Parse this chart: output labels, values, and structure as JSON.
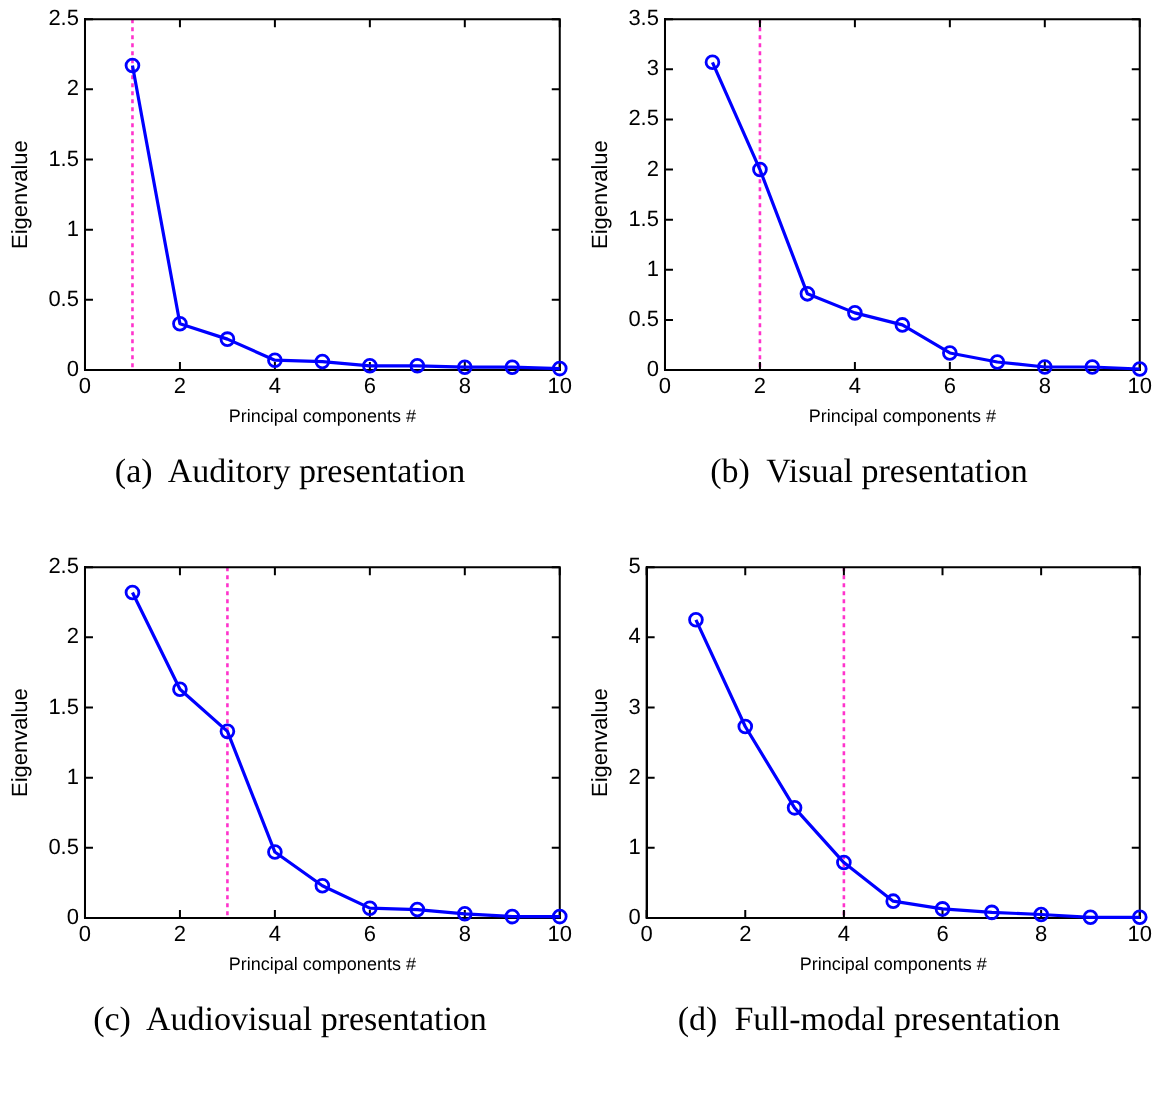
{
  "chart_data": [
    {
      "type": "line",
      "title": "(a)  Auditory presentation",
      "xlabel": "Principal components #",
      "ylabel": "Eigenvalue",
      "x": [
        1,
        2,
        3,
        4,
        5,
        6,
        7,
        8,
        9,
        10
      ],
      "xlim": [
        0,
        10
      ],
      "xticks": [
        0,
        2,
        4,
        6,
        8,
        10
      ],
      "ylim": [
        0,
        2.5
      ],
      "yticks": [
        0,
        0.5,
        1,
        1.5,
        2,
        2.5
      ],
      "marker": "circle",
      "line_style": "solid",
      "grid": false,
      "legend": false,
      "series": [
        {
          "color": "#0000ff",
          "values": [
            2.17,
            0.33,
            0.22,
            0.07,
            0.06,
            0.03,
            0.03,
            0.02,
            0.02,
            0.01
          ]
        }
      ],
      "ref_lines": [
        {
          "axis": "x",
          "value": 1,
          "color": "#ff33cc",
          "line_style": "dotted"
        }
      ]
    },
    {
      "type": "line",
      "title": "(b)  Visual presentation",
      "xlabel": "Principal components #",
      "ylabel": "Eigenvalue",
      "x": [
        1,
        2,
        3,
        4,
        5,
        6,
        7,
        8,
        9,
        10
      ],
      "xlim": [
        0,
        10
      ],
      "xticks": [
        0,
        2,
        4,
        6,
        8,
        10
      ],
      "ylim": [
        0,
        3.5
      ],
      "yticks": [
        0,
        0.5,
        1,
        1.5,
        2,
        2.5,
        3,
        3.5
      ],
      "marker": "circle",
      "line_style": "solid",
      "grid": false,
      "legend": false,
      "series": [
        {
          "color": "#0000ff",
          "values": [
            3.07,
            2.0,
            0.76,
            0.57,
            0.45,
            0.17,
            0.08,
            0.03,
            0.03,
            0.01
          ]
        }
      ],
      "ref_lines": [
        {
          "axis": "x",
          "value": 2,
          "color": "#ff33cc",
          "line_style": "dotted"
        }
      ]
    },
    {
      "type": "line",
      "title": "(c)  Audiovisual presentation",
      "xlabel": "Principal components #",
      "ylabel": "Eigenvalue",
      "x": [
        1,
        2,
        3,
        4,
        5,
        6,
        7,
        8,
        9,
        10
      ],
      "xlim": [
        0,
        10
      ],
      "xticks": [
        0,
        2,
        4,
        6,
        8,
        10
      ],
      "ylim": [
        0,
        2.5
      ],
      "yticks": [
        0,
        0.5,
        1,
        1.5,
        2,
        2.5
      ],
      "marker": "circle",
      "line_style": "solid",
      "grid": false,
      "legend": false,
      "series": [
        {
          "color": "#0000ff",
          "values": [
            2.32,
            1.63,
            1.33,
            0.47,
            0.23,
            0.07,
            0.06,
            0.03,
            0.01,
            0.01
          ]
        }
      ],
      "ref_lines": [
        {
          "axis": "x",
          "value": 3,
          "color": "#ff33cc",
          "line_style": "dotted"
        }
      ]
    },
    {
      "type": "line",
      "title": "(d)  Full-modal presentation",
      "xlabel": "Principal components #",
      "ylabel": "Eigenvalue",
      "x": [
        1,
        2,
        3,
        4,
        5,
        6,
        7,
        8,
        9,
        10
      ],
      "xlim": [
        0,
        10
      ],
      "xticks": [
        0,
        2,
        4,
        6,
        8,
        10
      ],
      "ylim": [
        0,
        5
      ],
      "yticks": [
        0,
        1,
        2,
        3,
        4,
        5
      ],
      "marker": "circle",
      "line_style": "solid",
      "grid": false,
      "legend": false,
      "series": [
        {
          "color": "#0000ff",
          "values": [
            4.25,
            2.73,
            1.57,
            0.79,
            0.24,
            0.13,
            0.08,
            0.05,
            0.01,
            0.01
          ]
        }
      ],
      "ref_lines": [
        {
          "axis": "x",
          "value": 4,
          "color": "#ff33cc",
          "line_style": "dotted"
        }
      ]
    }
  ]
}
